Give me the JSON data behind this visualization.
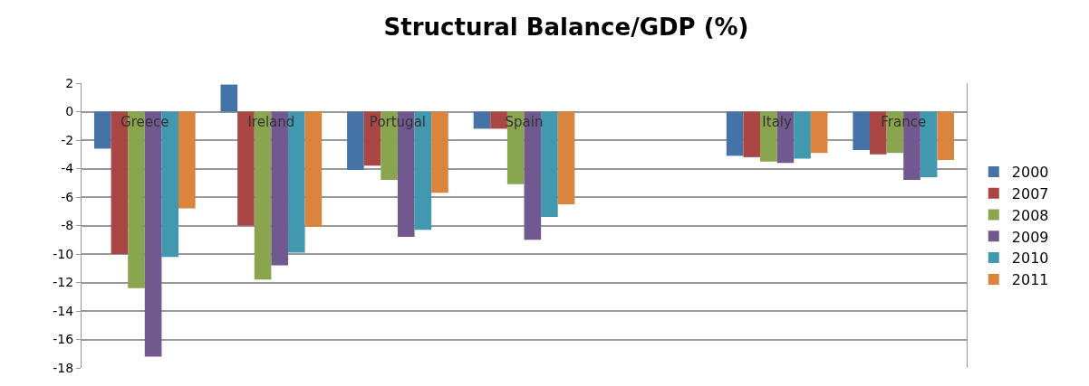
{
  "chart_data": {
    "type": "bar",
    "title": "Structural Balance/GDP (%)",
    "categories": [
      "Greece",
      "Ireland",
      "Portugal",
      "Spain",
      null,
      "Italy",
      "France"
    ],
    "series": [
      {
        "name": "2000",
        "color": "#4572a7",
        "values": [
          -2.6,
          1.9,
          -4.1,
          -1.2,
          null,
          -3.1,
          -2.7
        ]
      },
      {
        "name": "2007",
        "color": "#aa4643",
        "values": [
          -10.0,
          -8.0,
          -3.8,
          -1.2,
          null,
          -3.2,
          -3.0
        ]
      },
      {
        "name": "2008",
        "color": "#89a54e",
        "values": [
          -12.4,
          -11.8,
          -4.8,
          -5.1,
          null,
          -3.5,
          -2.9
        ]
      },
      {
        "name": "2009",
        "color": "#71588f",
        "values": [
          -17.2,
          -10.8,
          -8.8,
          -9.0,
          null,
          -3.6,
          -4.8
        ]
      },
      {
        "name": "2010",
        "color": "#4198af",
        "values": [
          -10.2,
          -9.9,
          -8.3,
          -7.4,
          null,
          -3.3,
          -4.6
        ]
      },
      {
        "name": "2011",
        "color": "#db843d",
        "values": [
          -6.8,
          -8.1,
          -5.7,
          -6.5,
          null,
          -2.9,
          -3.4
        ]
      }
    ],
    "ylim": [
      -18,
      2
    ],
    "yticks": [
      -18,
      -16,
      -14,
      -12,
      -10,
      -8,
      -6,
      -4,
      -2,
      0,
      2
    ],
    "grid": "y",
    "legend": "right"
  }
}
